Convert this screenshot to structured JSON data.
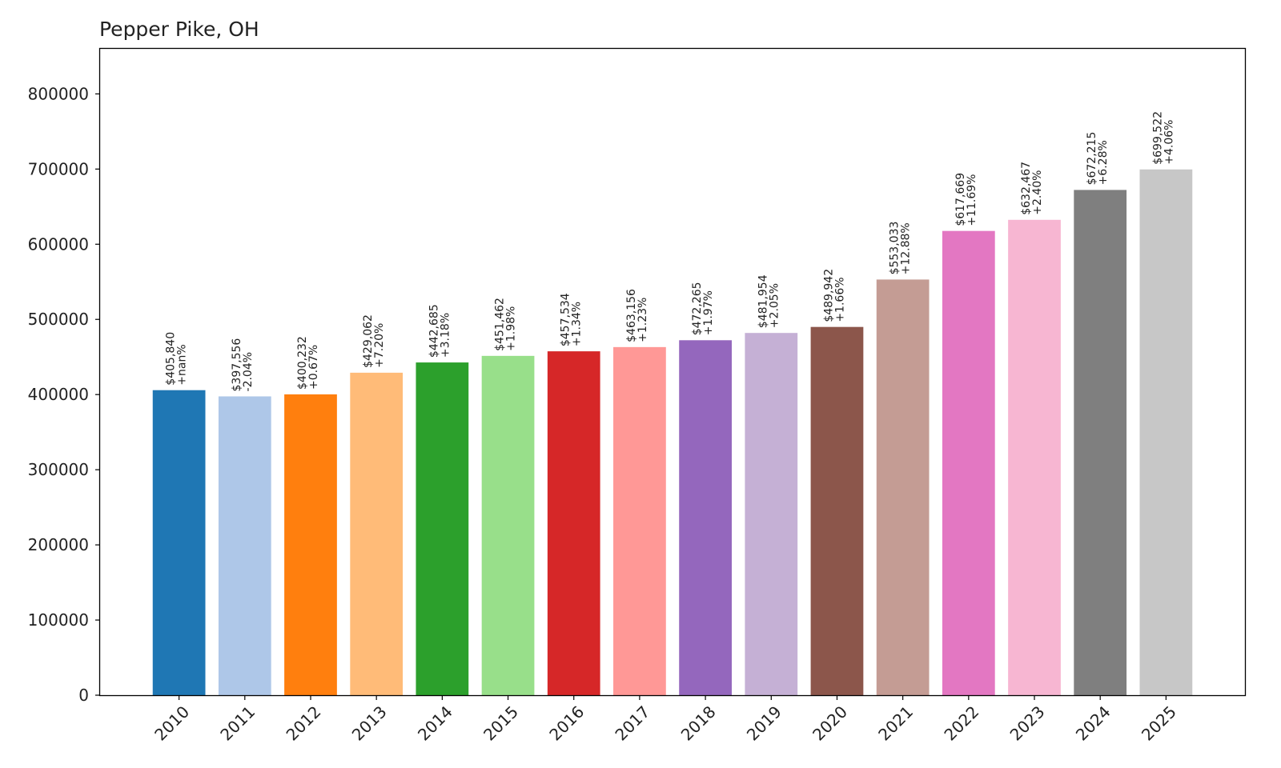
{
  "chart_data": {
    "type": "bar",
    "title": "Pepper Pike, OH",
    "xlabel": "",
    "ylabel": "",
    "categories": [
      "2010",
      "2011",
      "2012",
      "2013",
      "2014",
      "2015",
      "2016",
      "2017",
      "2018",
      "2019",
      "2020",
      "2021",
      "2022",
      "2023",
      "2024",
      "2025"
    ],
    "values": [
      405840,
      397556,
      400232,
      429062,
      442685,
      451462,
      457534,
      463156,
      472265,
      481954,
      489942,
      553033,
      617669,
      632467,
      672215,
      699522
    ],
    "value_labels": [
      "$405,840",
      "$397,556",
      "$400,232",
      "$429,062",
      "$442,685",
      "$451,462",
      "$457,534",
      "$463,156",
      "$472,265",
      "$481,954",
      "$489,942",
      "$553,033",
      "$617,669",
      "$632,467",
      "$672,215",
      "$699,522"
    ],
    "change_labels": [
      "+nan%",
      "-2.04%",
      "+0.67%",
      "+7.20%",
      "+3.18%",
      "+1.98%",
      "+1.34%",
      "+1.23%",
      "+1.97%",
      "+2.05%",
      "+1.66%",
      "+12.88%",
      "+11.69%",
      "+2.40%",
      "+6.28%",
      "+4.06%"
    ],
    "colors": [
      "#1f77b4",
      "#aec7e8",
      "#ff7f0e",
      "#ffbb78",
      "#2ca02c",
      "#98df8a",
      "#d62728",
      "#ff9896",
      "#9467bd",
      "#c5b0d5",
      "#8c564b",
      "#c49c94",
      "#e377c2",
      "#f7b6d2",
      "#7f7f7f",
      "#c7c7c7"
    ],
    "ylim": [
      0,
      860000
    ],
    "yticks": [
      0,
      100000,
      200000,
      300000,
      400000,
      500000,
      600000,
      700000,
      800000
    ],
    "ytick_labels": [
      "0",
      "100000",
      "200000",
      "300000",
      "400000",
      "500000",
      "600000",
      "700000",
      "800000"
    ],
    "grid": false,
    "legend": "none"
  }
}
